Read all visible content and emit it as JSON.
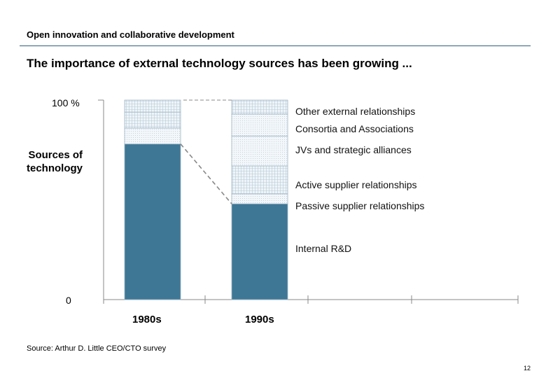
{
  "header": {
    "subtitle": "Open innovation and collaborative development",
    "title": "The importance of external technology sources has been growing ..."
  },
  "chart_data": {
    "type": "bar",
    "stacked": true,
    "ylabel": "Sources of technology",
    "ylim": [
      0,
      100
    ],
    "tick_labels": {
      "top": "100 %",
      "bottom": "0"
    },
    "categories": [
      "1980s",
      "1990s"
    ],
    "series": [
      {
        "name": "Internal R&D",
        "values": [
          78,
          48
        ],
        "color": "#3e7796"
      },
      {
        "name": "Passive supplier relationships",
        "values": [
          8,
          5
        ],
        "color": "#e4edf4"
      },
      {
        "name": "Active supplier relationships",
        "values": [
          8,
          14
        ],
        "color": "#d4e2ec"
      },
      {
        "name": "JVs and strategic alliances",
        "values": [
          0,
          15
        ],
        "color": "#edf3f7"
      },
      {
        "name": "Consortia and Associations",
        "values": [
          0,
          11
        ],
        "color": "#e8f0f6"
      },
      {
        "name": "Other external relationships",
        "values": [
          6,
          7
        ],
        "color": "#dde7ef"
      }
    ],
    "colors": {
      "primary": "#3e7796",
      "rule": "#2f5f7f",
      "axis": "#888888"
    }
  },
  "footer": {
    "source": "Source: Arthur D. Little CEO/CTO survey",
    "page": "12"
  }
}
